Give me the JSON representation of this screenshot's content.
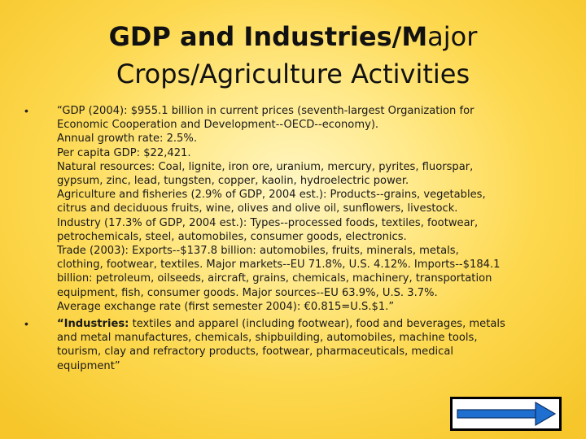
{
  "slide": {
    "title_line1_bold": "GDP and Industries/M",
    "title_line1_rest": "ajor",
    "title_line2": "Crops/Agriculture Activities",
    "bullets": [
      {
        "marker": "•",
        "lines": [
          "“GDP (2004): $955.1 billion in current prices (seventh-largest Organization for",
          "Economic Cooperation and Development--OECD--economy).",
          "Annual growth rate: 2.5%.",
          "Per capita GDP: $22,421.",
          "Natural resources: Coal, lignite, iron ore, uranium, mercury, pyrites, fluorspar,",
          "gypsum, zinc, lead, tungsten, copper, kaolin, hydroelectric power.",
          "Agriculture and fisheries (2.9% of GDP, 2004 est.): Products--grains, vegetables,",
          "citrus and deciduous fruits, wine, olives and olive oil, sunflowers, livestock.",
          "Industry (17.3% of GDP, 2004 est.): Types--processed foods, textiles, footwear,",
          "petrochemicals, steel, automobiles, consumer goods, electronics.",
          "Trade (2003): Exports--$137.8 billion: automobiles, fruits, minerals, metals,",
          "clothing, footwear, textiles. Major markets--EU 71.8%, U.S. 4.12%. Imports--$184.1",
          "billion: petroleum, oilseeds, aircraft, grains, chemicals, machinery, transportation",
          "equipment, fish, consumer goods. Major sources--EU 63.9%, U.S. 3.7%.",
          "Average exchange rate (first semester 2004): €0.815=U.S.$1.”"
        ]
      },
      {
        "marker": "•",
        "first_bold": "“Industries:",
        "first_rest": " textiles and apparel (including footwear), food and beverages, metals",
        "lines": [
          "and metal manufactures, chemicals, shipbuilding, automobiles, machine tools,",
          "tourism, clay and refractory products, footwear, pharmaceuticals, medical",
          "equipment”"
        ]
      }
    ],
    "next_button_icon": "right-arrow-icon"
  }
}
